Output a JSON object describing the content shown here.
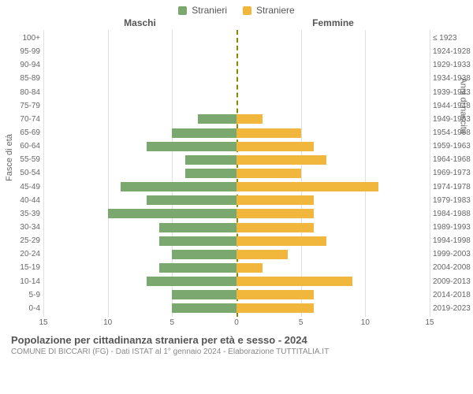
{
  "legend": {
    "male_label": "Stranieri",
    "female_label": "Straniere"
  },
  "headers": {
    "left": "Maschi",
    "right": "Femmine"
  },
  "axis_labels": {
    "left": "Fasce di età",
    "right": "Anni di nascita"
  },
  "chart": {
    "type": "population-pyramid",
    "xlim": [
      -15,
      15
    ],
    "xticks_left": [
      15,
      10,
      5,
      0
    ],
    "xticks_right": [
      5,
      10,
      15
    ],
    "male_color": "#7ba86f",
    "female_color": "#f1b63c",
    "grid_color": "#e0e0e0",
    "centerline_color": "#888800",
    "background_color": "#ffffff",
    "bar_height_ratio": 0.7,
    "age_bins": [
      {
        "age": "100+",
        "birth": "≤ 1923",
        "m": 0,
        "f": 0
      },
      {
        "age": "95-99",
        "birth": "1924-1928",
        "m": 0,
        "f": 0
      },
      {
        "age": "90-94",
        "birth": "1929-1933",
        "m": 0,
        "f": 0
      },
      {
        "age": "85-89",
        "birth": "1934-1938",
        "m": 0,
        "f": 0
      },
      {
        "age": "80-84",
        "birth": "1939-1943",
        "m": 0,
        "f": 0
      },
      {
        "age": "75-79",
        "birth": "1944-1948",
        "m": 0,
        "f": 0
      },
      {
        "age": "70-74",
        "birth": "1949-1953",
        "m": 3,
        "f": 2
      },
      {
        "age": "65-69",
        "birth": "1954-1958",
        "m": 5,
        "f": 5
      },
      {
        "age": "60-64",
        "birth": "1959-1963",
        "m": 7,
        "f": 6
      },
      {
        "age": "55-59",
        "birth": "1964-1968",
        "m": 4,
        "f": 7
      },
      {
        "age": "50-54",
        "birth": "1969-1973",
        "m": 4,
        "f": 5
      },
      {
        "age": "45-49",
        "birth": "1974-1978",
        "m": 9,
        "f": 11
      },
      {
        "age": "40-44",
        "birth": "1979-1983",
        "m": 7,
        "f": 6
      },
      {
        "age": "35-39",
        "birth": "1984-1988",
        "m": 10,
        "f": 6
      },
      {
        "age": "30-34",
        "birth": "1989-1993",
        "m": 6,
        "f": 6
      },
      {
        "age": "25-29",
        "birth": "1994-1998",
        "m": 6,
        "f": 7
      },
      {
        "age": "20-24",
        "birth": "1999-2003",
        "m": 5,
        "f": 4
      },
      {
        "age": "15-19",
        "birth": "2004-2008",
        "m": 6,
        "f": 2
      },
      {
        "age": "10-14",
        "birth": "2009-2013",
        "m": 7,
        "f": 9
      },
      {
        "age": "5-9",
        "birth": "2014-2018",
        "m": 5,
        "f": 6
      },
      {
        "age": "0-4",
        "birth": "2019-2023",
        "m": 5,
        "f": 6
      }
    ]
  },
  "footer": {
    "title": "Popolazione per cittadinanza straniera per età e sesso - 2024",
    "subtitle": "COMUNE DI BICCARI (FG) - Dati ISTAT al 1° gennaio 2024 - Elaborazione TUTTITALIA.IT"
  }
}
